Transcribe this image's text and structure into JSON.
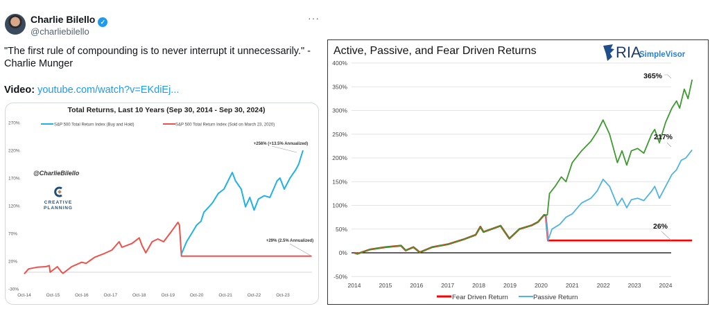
{
  "tweet": {
    "author_name": "Charlie Bilello",
    "verified_icon": "verified-badge-icon",
    "handle": "@charliebilello",
    "more_icon": "···",
    "text_line1": "\"The first rule of compounding is to never interrupt it unnecessarily.\" -",
    "text_line2": "Charlie Munger",
    "video_label": "Video:",
    "video_link": "youtube.com/watch?v=EKdiEj..."
  },
  "chart_data": [
    {
      "type": "line",
      "title": "Total Returns, Last 10 Years (Sep 30, 2014 - Sep 30, 2024)",
      "watermark": "@CharlieBilello",
      "logo_text": [
        "CREATIVE",
        "PLANNING"
      ],
      "y_ticks": [
        "270%",
        "220%",
        "170%",
        "120%",
        "70%",
        "20%",
        "-30%"
      ],
      "y_tick_values": [
        270,
        220,
        170,
        120,
        70,
        20,
        -30
      ],
      "x_ticks": [
        "Oct-14",
        "Oct-15",
        "Oct-16",
        "Oct-17",
        "Oct-18",
        "Oct-19",
        "Oct-20",
        "Oct-21",
        "Oct-22",
        "Oct-23"
      ],
      "x_tick_values": [
        2014.75,
        2015.75,
        2016.75,
        2017.75,
        2018.75,
        2019.75,
        2020.75,
        2021.75,
        2022.75,
        2023.75
      ],
      "ylim": [
        -30,
        270
      ],
      "legend_position": "top",
      "series": [
        {
          "name": "S&P 500 Total Return Index (Buy and Hold)",
          "color": "#1fb2e8",
          "points": [
            [
              2020.22,
              33
            ],
            [
              2020.4,
              55
            ],
            [
              2020.6,
              72
            ],
            [
              2020.75,
              85
            ],
            [
              2020.9,
              92
            ],
            [
              2021.0,
              108
            ],
            [
              2021.3,
              125
            ],
            [
              2021.5,
              142
            ],
            [
              2021.7,
              150
            ],
            [
              2021.99,
              180
            ],
            [
              2022.1,
              165
            ],
            [
              2022.3,
              150
            ],
            [
              2022.45,
              118
            ],
            [
              2022.6,
              135
            ],
            [
              2022.75,
              112
            ],
            [
              2022.9,
              132
            ],
            [
              2023.1,
              138
            ],
            [
              2023.3,
              135
            ],
            [
              2023.55,
              165
            ],
            [
              2023.65,
              170
            ],
            [
              2023.8,
              150
            ],
            [
              2024.0,
              170
            ],
            [
              2024.2,
              185
            ],
            [
              2024.3,
              195
            ],
            [
              2024.45,
              220
            ]
          ]
        },
        {
          "name": "S&P 500 Total Return Index (Sold on March 23, 2020)",
          "color": "#f0504a",
          "points": [
            [
              2014.75,
              -3
            ],
            [
              2014.9,
              6
            ],
            [
              2015.2,
              9
            ],
            [
              2015.5,
              10
            ],
            [
              2015.62,
              12
            ],
            [
              2015.65,
              0
            ],
            [
              2015.9,
              10
            ],
            [
              2016.05,
              0
            ],
            [
              2016.1,
              -2
            ],
            [
              2016.4,
              10
            ],
            [
              2016.75,
              18
            ],
            [
              2016.9,
              16
            ],
            [
              2017.2,
              27
            ],
            [
              2017.5,
              33
            ],
            [
              2017.8,
              40
            ],
            [
              2018.05,
              55
            ],
            [
              2018.15,
              45
            ],
            [
              2018.5,
              52
            ],
            [
              2018.75,
              62
            ],
            [
              2018.85,
              48
            ],
            [
              2018.98,
              35
            ],
            [
              2019.2,
              55
            ],
            [
              2019.4,
              60
            ],
            [
              2019.6,
              55
            ],
            [
              2019.85,
              72
            ],
            [
              2020.1,
              90
            ],
            [
              2020.15,
              85
            ],
            [
              2020.22,
              29
            ],
            [
              2024.75,
              29
            ]
          ]
        }
      ],
      "annotations": [
        "+256% (+13.5% Annualized)",
        "+29% (2.5% Annualized)"
      ]
    },
    {
      "type": "line",
      "title": "Active, Passive, and Fear Driven Returns",
      "logo_text": [
        "RIA",
        "SimpleVisor"
      ],
      "y_ticks": [
        "400%",
        "350%",
        "300%",
        "250%",
        "200%",
        "150%",
        "100%",
        "50%",
        "0%",
        "-50%"
      ],
      "y_tick_values": [
        400,
        350,
        300,
        250,
        200,
        150,
        100,
        50,
        0,
        -50
      ],
      "x_ticks": [
        "2014",
        "2015",
        "2016",
        "2017",
        "2018",
        "2019",
        "2020",
        "2021",
        "2022",
        "2023",
        "2024"
      ],
      "x_tick_values": [
        2014,
        2015,
        2016,
        2017,
        2018,
        2019,
        2020,
        2021,
        2022,
        2023,
        2024
      ],
      "ylim": [
        -50,
        400
      ],
      "grid": true,
      "legend_position": "bottom",
      "series": [
        {
          "name": "Fear Driven Return",
          "color": "#ff0000",
          "points": [
            [
              2014.0,
              0
            ],
            [
              2014.1,
              -2
            ],
            [
              2014.5,
              7
            ],
            [
              2015.0,
              12
            ],
            [
              2015.5,
              15
            ],
            [
              2015.65,
              5
            ],
            [
              2015.9,
              12
            ],
            [
              2016.1,
              1
            ],
            [
              2016.5,
              12
            ],
            [
              2017.0,
              18
            ],
            [
              2017.5,
              28
            ],
            [
              2017.9,
              38
            ],
            [
              2018.05,
              55
            ],
            [
              2018.15,
              44
            ],
            [
              2018.7,
              57
            ],
            [
              2018.98,
              30
            ],
            [
              2019.3,
              50
            ],
            [
              2019.7,
              58
            ],
            [
              2019.9,
              65
            ],
            [
              2020.1,
              80
            ],
            [
              2020.15,
              78
            ],
            [
              2020.22,
              26
            ],
            [
              2024.85,
              26
            ]
          ]
        },
        {
          "name": "Passive Return",
          "color": "#4fb3e4",
          "points": [
            [
              2020.15,
              78
            ],
            [
              2020.22,
              26
            ],
            [
              2020.35,
              50
            ],
            [
              2020.6,
              60
            ],
            [
              2020.8,
              75
            ],
            [
              2021.0,
              82
            ],
            [
              2021.3,
              105
            ],
            [
              2021.6,
              115
            ],
            [
              2021.8,
              130
            ],
            [
              2021.99,
              155
            ],
            [
              2022.2,
              140
            ],
            [
              2022.45,
              100
            ],
            [
              2022.6,
              115
            ],
            [
              2022.75,
              95
            ],
            [
              2022.9,
              112
            ],
            [
              2023.1,
              115
            ],
            [
              2023.3,
              110
            ],
            [
              2023.55,
              130
            ],
            [
              2023.65,
              140
            ],
            [
              2023.8,
              115
            ],
            [
              2024.0,
              140
            ],
            [
              2024.2,
              165
            ],
            [
              2024.35,
              175
            ],
            [
              2024.5,
              195
            ],
            [
              2024.65,
              200
            ],
            [
              2024.85,
              217
            ]
          ]
        },
        {
          "color": "#3c9a2e",
          "points": [
            [
              2014.0,
              0
            ],
            [
              2014.1,
              -2
            ],
            [
              2014.5,
              7
            ],
            [
              2015.0,
              12
            ],
            [
              2015.5,
              15
            ],
            [
              2015.65,
              5
            ],
            [
              2015.9,
              12
            ],
            [
              2016.1,
              1
            ],
            [
              2016.5,
              12
            ],
            [
              2017.0,
              18
            ],
            [
              2017.5,
              28
            ],
            [
              2017.9,
              38
            ],
            [
              2018.05,
              55
            ],
            [
              2018.15,
              44
            ],
            [
              2018.7,
              57
            ],
            [
              2018.98,
              30
            ],
            [
              2019.3,
              50
            ],
            [
              2019.7,
              58
            ],
            [
              2019.9,
              65
            ],
            [
              2020.1,
              80
            ],
            [
              2020.2,
              80
            ],
            [
              2020.27,
              125
            ],
            [
              2020.45,
              140
            ],
            [
              2020.65,
              160
            ],
            [
              2020.8,
              150
            ],
            [
              2021.0,
              190
            ],
            [
              2021.3,
              215
            ],
            [
              2021.6,
              235
            ],
            [
              2021.8,
              255
            ],
            [
              2021.99,
              280
            ],
            [
              2022.2,
              250
            ],
            [
              2022.45,
              190
            ],
            [
              2022.6,
              215
            ],
            [
              2022.75,
              185
            ],
            [
              2022.9,
              215
            ],
            [
              2023.1,
              220
            ],
            [
              2023.3,
              210
            ],
            [
              2023.55,
              250
            ],
            [
              2023.65,
              260
            ],
            [
              2023.8,
              232
            ],
            [
              2024.0,
              275
            ],
            [
              2024.2,
              305
            ],
            [
              2024.35,
              320
            ],
            [
              2024.45,
              305
            ],
            [
              2024.6,
              345
            ],
            [
              2024.72,
              325
            ],
            [
              2024.85,
              365
            ]
          ]
        }
      ],
      "annotations": [
        "365%",
        "217%",
        "26%"
      ]
    }
  ]
}
